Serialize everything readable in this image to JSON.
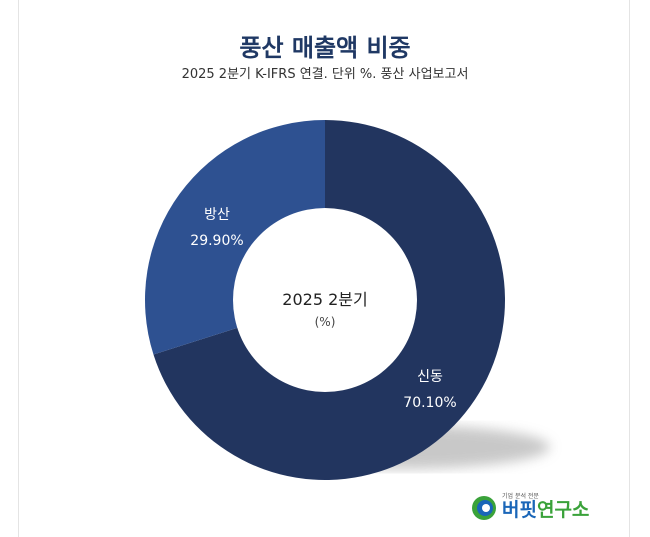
{
  "header": {
    "title": "풍산 매출액 비중",
    "subtitle": "2025 2분기 K-IFRS 연결. 단위 %. 풍산 사업보고서"
  },
  "chart_data": {
    "type": "pie",
    "title": "풍산 매출액 비중",
    "subtitle": "2025 2분기 K-IFRS 연결. 단위 %. 풍산 사업보고서",
    "center_label": "2025 2분기",
    "center_sublabel": "(%)",
    "slices": [
      {
        "label": "신동",
        "value": 70.1,
        "value_label": "70.10%",
        "color": "#22355f"
      },
      {
        "label": "방산",
        "value": 29.9,
        "value_label": "29.90%",
        "color": "#2e5191"
      }
    ]
  },
  "logo": {
    "tagline": "기업 분석 전문",
    "name_part1": "버핏",
    "name_part2": "연구소"
  }
}
